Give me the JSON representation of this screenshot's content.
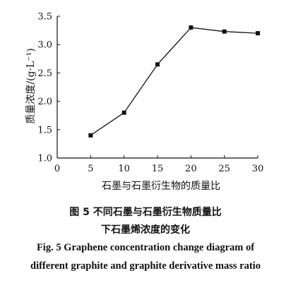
{
  "chart_data": {
    "type": "line",
    "x": [
      5,
      10,
      15,
      20,
      25,
      30
    ],
    "series": [
      {
        "values": [
          1.4,
          1.8,
          2.65,
          3.3,
          3.23,
          3.2
        ]
      }
    ],
    "xlim": [
      0,
      30
    ],
    "ylim": [
      1.0,
      3.5
    ],
    "xticks": [
      0,
      5,
      10,
      15,
      20,
      25,
      30
    ],
    "yticks": [
      "1.0",
      "1.5",
      "2.0",
      "2.5",
      "3.0",
      "3.5"
    ],
    "xtick_labels": [
      "0",
      "5",
      "10",
      "15",
      "20",
      "25",
      "30"
    ],
    "xlabel": "石墨与石墨衍生物的质量比",
    "ylabel": "质量浓度/(g·L⁻¹)",
    "grid": false,
    "marker": "square"
  },
  "captions": {
    "zh_line1": "图 5    不同石墨与石墨衍生物质量比",
    "zh_line2": "下石墨烯浓度的变化",
    "en_line1": "Fig. 5    Graphene concentration change diagram of",
    "en_line2": "different graphite and graphite derivative mass ratio"
  }
}
